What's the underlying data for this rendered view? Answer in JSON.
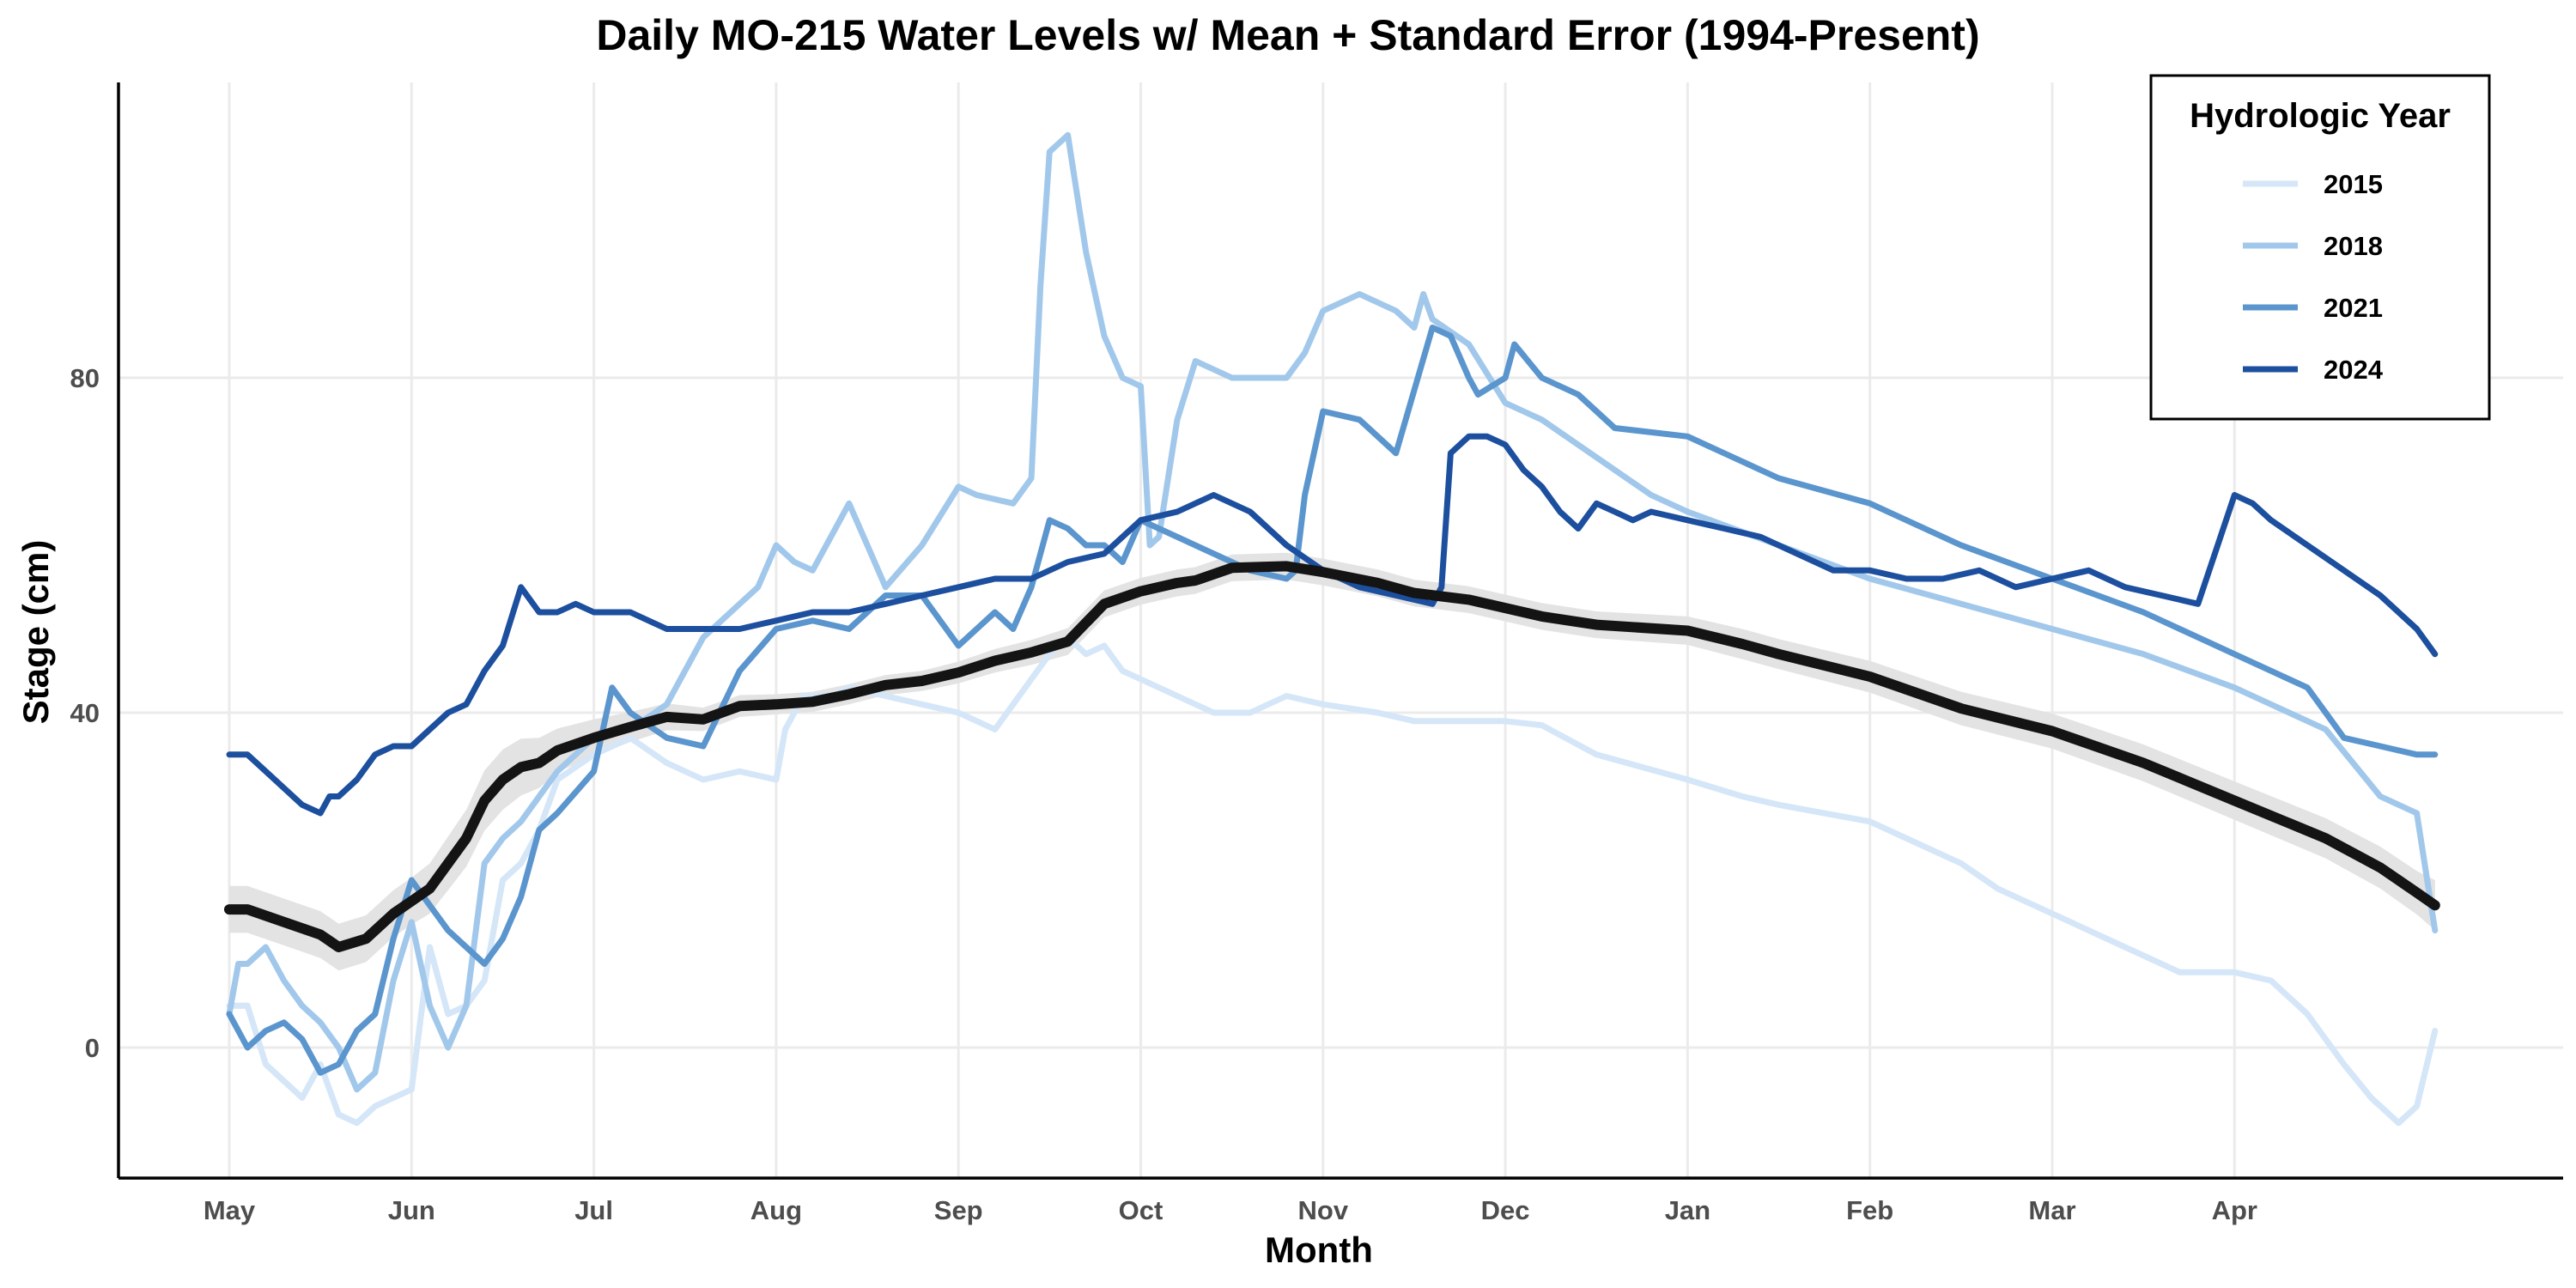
{
  "chart_data": {
    "type": "line",
    "title": "Daily MO-215 Water Levels w/ Mean + Standard Error (1994-Present)",
    "xlabel": "Month",
    "ylabel": "Stage (cm)",
    "x_ticks": [
      "May",
      "Jun",
      "Jul",
      "Aug",
      "Sep",
      "Oct",
      "Nov",
      "Dec",
      "Jan",
      "Feb",
      "Mar",
      "Apr"
    ],
    "y_ticks": [
      0,
      40,
      80
    ],
    "xlim": [
      0,
      12.3
    ],
    "ylim": [
      -16,
      114
    ],
    "grid": true,
    "legend": {
      "title": "Hydrologic Year",
      "placement": "top-right",
      "entries": [
        "2015",
        "2018",
        "2021",
        "2024"
      ]
    },
    "mean": {
      "color": "#141414",
      "band_color": "#e3e3e3",
      "x": [
        0,
        0.1,
        0.3,
        0.5,
        0.6,
        0.75,
        0.9,
        1.0,
        1.1,
        1.2,
        1.3,
        1.4,
        1.5,
        1.6,
        1.7,
        1.8,
        2.0,
        2.2,
        2.4,
        2.6,
        2.8,
        3.0,
        3.2,
        3.4,
        3.6,
        3.8,
        4.0,
        4.2,
        4.4,
        4.6,
        4.8,
        5.0,
        5.2,
        5.3,
        5.5,
        5.8,
        6.0,
        6.3,
        6.5,
        6.8,
        7.0,
        7.2,
        7.5,
        8.0,
        8.3,
        8.5,
        9.0,
        9.5,
        10.0,
        10.5,
        11.0,
        11.5,
        11.8,
        12.0,
        12.1
      ],
      "y": [
        16.5,
        16.5,
        15,
        13.5,
        12,
        13,
        16,
        17.5,
        19,
        22,
        25,
        29.5,
        32,
        33.5,
        34,
        35.5,
        37,
        38.3,
        39.5,
        39.2,
        40.8,
        41,
        41.3,
        42.2,
        43.3,
        43.8,
        44.8,
        46.2,
        47.2,
        48.5,
        53,
        54.5,
        55.5,
        55.8,
        57.3,
        57.5,
        56.8,
        55.5,
        54.3,
        53.5,
        52.5,
        51.5,
        50.5,
        49.8,
        48.2,
        47,
        44.3,
        40.5,
        37.8,
        34,
        29.5,
        25,
        21.5,
        18.5,
        17
      ],
      "se": [
        2.8,
        2.8,
        2.8,
        2.8,
        2.8,
        2.8,
        2.8,
        2.8,
        3.0,
        3.2,
        3.4,
        3.6,
        3.6,
        3.4,
        3.0,
        2.6,
        2.2,
        1.8,
        1.6,
        1.4,
        1.3,
        1.2,
        1.2,
        1.2,
        1.2,
        1.2,
        1.3,
        1.4,
        1.5,
        1.6,
        1.6,
        1.6,
        1.6,
        1.6,
        1.6,
        1.6,
        1.6,
        1.6,
        1.6,
        1.6,
        1.6,
        1.6,
        1.6,
        1.7,
        1.8,
        1.8,
        1.9,
        2.0,
        2.1,
        2.2,
        2.3,
        2.4,
        2.5,
        2.6,
        3.0
      ]
    },
    "series": [
      {
        "name": "2015",
        "color": "#d4e6f7",
        "x": [
          0,
          0.1,
          0.2,
          0.3,
          0.4,
          0.5,
          0.6,
          0.7,
          0.8,
          0.9,
          1.0,
          1.1,
          1.2,
          1.3,
          1.4,
          1.5,
          1.6,
          1.7,
          1.8,
          2.0,
          2.2,
          2.4,
          2.6,
          2.8,
          3.0,
          3.05,
          3.15,
          3.3,
          3.4,
          3.6,
          3.8,
          4.0,
          4.2,
          4.3,
          4.4,
          4.5,
          4.6,
          4.7,
          4.8,
          4.9,
          5.0,
          5.2,
          5.4,
          5.6,
          5.8,
          6.0,
          6.3,
          6.5,
          7.0,
          7.2,
          7.5,
          8.0,
          8.3,
          8.5,
          9.0,
          9.2,
          9.5,
          9.7,
          10.0,
          10.3,
          10.5,
          10.7,
          11.0,
          11.2,
          11.4,
          11.6,
          11.75,
          11.9,
          12.0,
          12.1
        ],
        "y": [
          5,
          5,
          -2,
          -4,
          -6,
          -2,
          -8,
          -9,
          -7,
          -6,
          -5,
          12,
          4,
          5,
          8,
          20,
          22,
          26,
          32,
          35,
          37,
          34,
          32,
          33,
          32,
          38,
          42,
          42,
          43,
          42,
          41,
          40,
          38,
          41,
          44,
          47,
          49,
          47,
          48,
          45,
          44,
          42,
          40,
          40,
          42,
          41,
          40,
          39,
          39,
          38.5,
          35,
          32,
          30,
          29,
          27,
          25,
          22,
          19,
          16,
          13,
          11,
          9,
          9,
          8,
          4,
          -2,
          -6,
          -9,
          -7,
          2
        ]
      },
      {
        "name": "2018",
        "color": "#a1c8eb",
        "x": [
          0,
          0.05,
          0.1,
          0.2,
          0.3,
          0.4,
          0.5,
          0.6,
          0.7,
          0.8,
          0.9,
          1.0,
          1.1,
          1.2,
          1.3,
          1.4,
          1.5,
          1.6,
          1.8,
          2.0,
          2.2,
          2.4,
          2.6,
          2.8,
          2.9,
          3.0,
          3.1,
          3.2,
          3.4,
          3.5,
          3.6,
          3.8,
          4.0,
          4.1,
          4.3,
          4.4,
          4.45,
          4.5,
          4.6,
          4.7,
          4.8,
          4.9,
          5.0,
          5.05,
          5.1,
          5.2,
          5.3,
          5.5,
          5.8,
          5.9,
          6.0,
          6.2,
          6.4,
          6.5,
          6.55,
          6.6,
          6.8,
          7.0,
          7.2,
          7.4,
          7.8,
          8.0,
          8.5,
          9.0,
          9.5,
          10.0,
          10.5,
          11.0,
          11.5,
          11.8,
          12.0,
          12.1
        ],
        "y": [
          4,
          10,
          10,
          12,
          8,
          5,
          3,
          0,
          -5,
          -3,
          8,
          15,
          5,
          0,
          5,
          22,
          25,
          27,
          33,
          37,
          38,
          41,
          49,
          53,
          55,
          60,
          58,
          57,
          65,
          60,
          55,
          60,
          67,
          66,
          65,
          68,
          91,
          107,
          109,
          95,
          85,
          80,
          79,
          60,
          61,
          75,
          82,
          80,
          80,
          83,
          88,
          90,
          88,
          86,
          90,
          87,
          84,
          77,
          75,
          72,
          66,
          64,
          60,
          56,
          53,
          50,
          47,
          43,
          38,
          30,
          28,
          14
        ]
      },
      {
        "name": "2021",
        "color": "#5b95ce",
        "x": [
          0,
          0.1,
          0.2,
          0.3,
          0.4,
          0.5,
          0.6,
          0.7,
          0.8,
          0.9,
          1.0,
          1.1,
          1.2,
          1.3,
          1.4,
          1.5,
          1.6,
          1.7,
          1.8,
          2.0,
          2.1,
          2.2,
          2.4,
          2.6,
          2.8,
          3.0,
          3.2,
          3.4,
          3.6,
          3.8,
          4.0,
          4.2,
          4.3,
          4.4,
          4.5,
          4.6,
          4.7,
          4.8,
          4.9,
          5.0,
          5.2,
          5.4,
          5.6,
          5.8,
          5.85,
          5.9,
          6.0,
          6.2,
          6.4,
          6.6,
          6.7,
          6.8,
          6.85,
          7.0,
          7.05,
          7.2,
          7.4,
          7.6,
          8.0,
          8.5,
          9.0,
          9.5,
          10.0,
          10.5,
          11.0,
          11.2,
          11.4,
          11.5,
          11.6,
          11.8,
          12.0,
          12.1
        ],
        "y": [
          4,
          0,
          2,
          3,
          1,
          -3,
          -2,
          2,
          4,
          13,
          20,
          17,
          14,
          12,
          10,
          13,
          18,
          26,
          28,
          33,
          43,
          40,
          37,
          36,
          45,
          50,
          51,
          50,
          54,
          54,
          48,
          52,
          50,
          55,
          63,
          62,
          60,
          60,
          58,
          63,
          61,
          59,
          57,
          56,
          57,
          66,
          76,
          75,
          71,
          86,
          85,
          80,
          78,
          80,
          84,
          80,
          78,
          74,
          73,
          68,
          65,
          60,
          56,
          52,
          47,
          45,
          43,
          40,
          37,
          36,
          35,
          35
        ]
      },
      {
        "name": "2024",
        "color": "#1d4f9f",
        "x": [
          0,
          0.1,
          0.2,
          0.3,
          0.4,
          0.5,
          0.55,
          0.6,
          0.7,
          0.8,
          0.9,
          1.0,
          1.1,
          1.2,
          1.3,
          1.4,
          1.5,
          1.6,
          1.7,
          1.8,
          1.9,
          2.0,
          2.2,
          2.4,
          2.6,
          2.8,
          3.0,
          3.2,
          3.4,
          3.6,
          3.8,
          4.0,
          4.2,
          4.4,
          4.6,
          4.8,
          5.0,
          5.2,
          5.4,
          5.6,
          5.8,
          6.0,
          6.2,
          6.4,
          6.6,
          6.65,
          6.7,
          6.8,
          6.9,
          7.0,
          7.1,
          7.2,
          7.3,
          7.4,
          7.5,
          7.6,
          7.7,
          7.8,
          8.0,
          8.2,
          8.4,
          8.6,
          8.8,
          9.0,
          9.2,
          9.4,
          9.6,
          9.8,
          10.0,
          10.2,
          10.4,
          10.6,
          10.8,
          11.0,
          11.1,
          11.2,
          11.4,
          11.6,
          11.8,
          12.0,
          12.1
        ],
        "y": [
          35,
          35,
          33,
          31,
          29,
          28,
          30,
          30,
          32,
          35,
          36,
          36,
          38,
          40,
          41,
          45,
          48,
          55,
          52,
          52,
          53,
          52,
          52,
          50,
          50,
          50,
          51,
          52,
          52,
          53,
          54,
          55,
          56,
          56,
          58,
          59,
          63,
          64,
          66,
          64,
          60,
          57,
          55,
          54,
          53,
          55,
          71,
          73,
          73,
          72,
          69,
          67,
          64,
          62,
          65,
          64,
          63,
          64,
          63,
          62,
          61,
          59,
          57,
          57,
          56,
          56,
          57,
          55,
          56,
          57,
          55,
          54,
          53,
          66,
          65,
          63,
          60,
          57,
          54,
          50,
          47
        ]
      }
    ]
  }
}
